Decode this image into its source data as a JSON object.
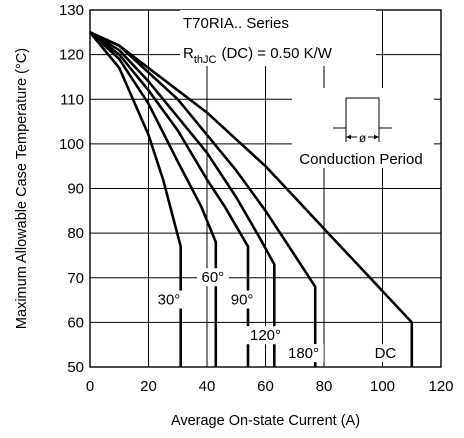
{
  "chart_data": {
    "type": "line",
    "xlabel": "Average On-state Current (A)",
    "ylabel": "Maximum Allowable Case Temperature (°C)",
    "xlim": [
      0,
      120
    ],
    "ylim": [
      50,
      130
    ],
    "x_ticks": [
      0,
      20,
      40,
      60,
      80,
      100,
      120
    ],
    "y_ticks": [
      50,
      60,
      70,
      80,
      90,
      100,
      110,
      120,
      130
    ],
    "grid": true,
    "annotation_title": "T70RIA.. Series",
    "rth_main": "R",
    "rth_sub": "thJC",
    "rth_rest": "(DC) = 0.50 K/W",
    "conduction_label": "Conduction Period",
    "phi_symbol": "ø",
    "series": [
      {
        "name": "30°",
        "label_at": [
          27,
          64
        ],
        "points": [
          [
            0,
            125
          ],
          [
            10,
            117
          ],
          [
            20,
            102
          ],
          [
            25,
            92
          ],
          [
            31,
            77
          ],
          [
            31,
            50
          ]
        ]
      },
      {
        "name": "60°",
        "label_at": [
          42,
          69
        ],
        "points": [
          [
            0,
            125
          ],
          [
            10,
            119
          ],
          [
            20,
            109
          ],
          [
            30,
            96
          ],
          [
            38,
            86
          ],
          [
            43,
            78
          ],
          [
            43,
            50
          ]
        ]
      },
      {
        "name": "90°",
        "label_at": [
          52,
          64
        ],
        "points": [
          [
            0,
            125
          ],
          [
            10,
            120
          ],
          [
            20,
            112
          ],
          [
            30,
            103
          ],
          [
            40,
            92
          ],
          [
            46,
            86
          ],
          [
            54,
            77
          ],
          [
            54,
            50
          ]
        ]
      },
      {
        "name": "120°",
        "label_at": [
          60,
          56
        ],
        "points": [
          [
            0,
            125
          ],
          [
            10,
            121
          ],
          [
            20,
            114
          ],
          [
            30,
            106
          ],
          [
            40,
            98
          ],
          [
            50,
            88
          ],
          [
            58,
            79
          ],
          [
            63,
            73
          ],
          [
            63,
            50
          ]
        ]
      },
      {
        "name": "180°",
        "label_at": [
          73,
          52
        ],
        "points": [
          [
            0,
            125
          ],
          [
            10,
            122
          ],
          [
            20,
            116
          ],
          [
            30,
            110
          ],
          [
            40,
            102
          ],
          [
            50,
            94
          ],
          [
            60,
            85
          ],
          [
            70,
            75
          ],
          [
            77,
            68
          ],
          [
            77,
            50
          ]
        ]
      },
      {
        "name": "DC",
        "label_at": [
          101,
          52
        ],
        "points": [
          [
            0,
            125
          ],
          [
            10,
            122
          ],
          [
            20,
            117
          ],
          [
            30,
            112
          ],
          [
            40,
            107
          ],
          [
            50,
            101
          ],
          [
            60,
            95
          ],
          [
            70,
            88
          ],
          [
            80,
            81
          ],
          [
            90,
            74
          ],
          [
            100,
            67
          ],
          [
            110,
            60
          ],
          [
            110,
            50
          ]
        ]
      }
    ]
  }
}
